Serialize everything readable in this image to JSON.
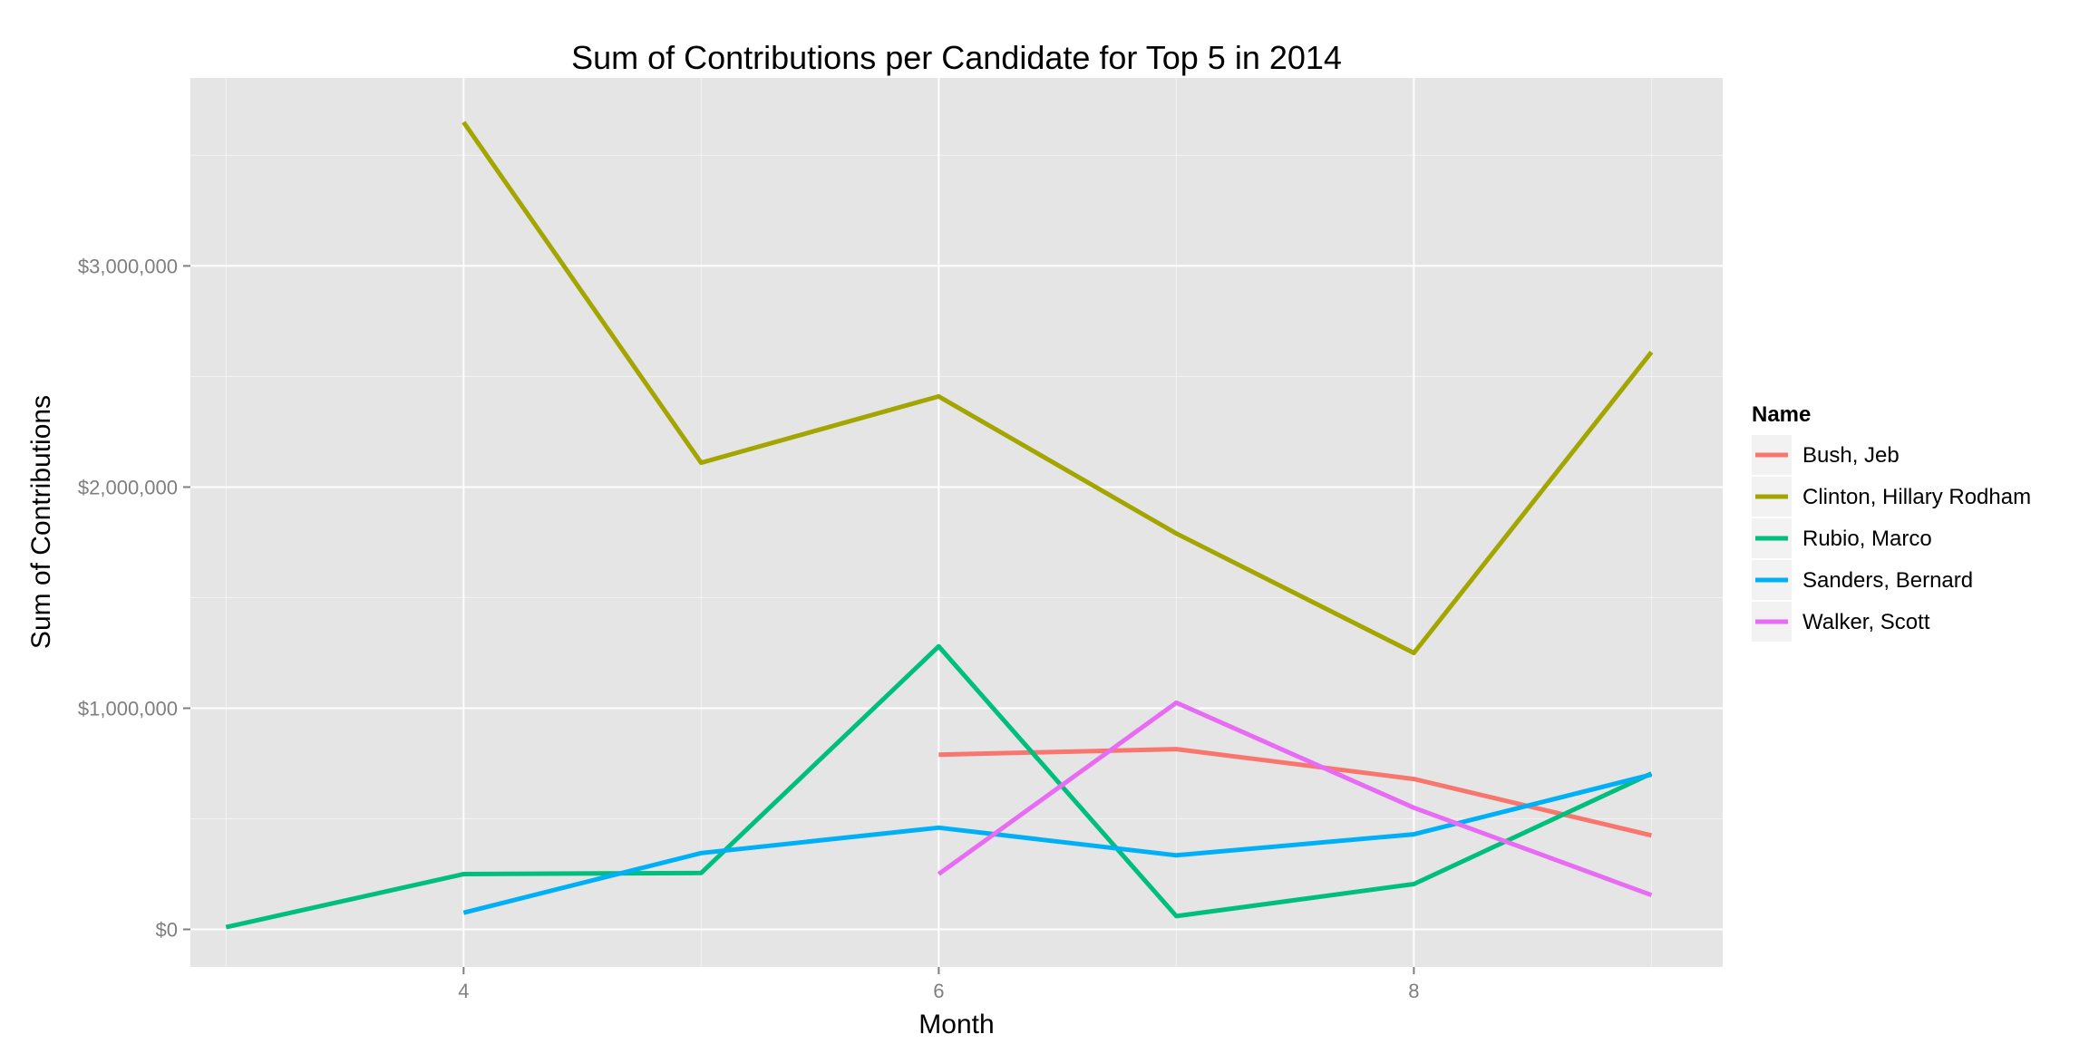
{
  "chart_data": {
    "type": "line",
    "title": "Sum of Contributions per Candidate for Top 5 in 2014",
    "xlabel": "Month",
    "ylabel": "Sum of Contributions",
    "xlim": [
      2.85,
      9.3
    ],
    "ylim": [
      -170000,
      3850000
    ],
    "x_ticks": [
      4,
      6,
      8
    ],
    "y_ticks": [
      0,
      1000000,
      2000000,
      3000000
    ],
    "y_tick_labels": [
      "$0",
      "$1,000,000",
      "$2,000,000",
      "$3,000,000"
    ],
    "grid": true,
    "legend": {
      "title": "Name",
      "position": "right"
    },
    "series": [
      {
        "name": "Bush, Jeb",
        "color": "#F8766D",
        "points": [
          [
            6,
            790000
          ],
          [
            7,
            815000
          ],
          [
            8,
            680000
          ],
          [
            9,
            425000
          ]
        ]
      },
      {
        "name": "Clinton, Hillary Rodham",
        "color": "#A3A500",
        "points": [
          [
            4,
            3650000
          ],
          [
            5,
            2110000
          ],
          [
            6,
            2410000
          ],
          [
            7,
            1790000
          ],
          [
            8,
            1250000
          ],
          [
            9,
            2610000
          ]
        ]
      },
      {
        "name": "Rubio, Marco",
        "color": "#00BF7D",
        "points": [
          [
            3,
            10000
          ],
          [
            4,
            250000
          ],
          [
            5,
            255000
          ],
          [
            6,
            1280000
          ],
          [
            7,
            60000
          ],
          [
            8,
            205000
          ],
          [
            9,
            705000
          ]
        ]
      },
      {
        "name": "Sanders, Bernard",
        "color": "#00B0F6",
        "points": [
          [
            4,
            75000
          ],
          [
            5,
            345000
          ],
          [
            6,
            460000
          ],
          [
            7,
            335000
          ],
          [
            8,
            430000
          ],
          [
            9,
            700000
          ]
        ]
      },
      {
        "name": "Walker, Scott",
        "color": "#E76BF3",
        "points": [
          [
            6,
            250000
          ],
          [
            7,
            1025000
          ],
          [
            8,
            550000
          ],
          [
            9,
            155000
          ]
        ]
      }
    ]
  }
}
